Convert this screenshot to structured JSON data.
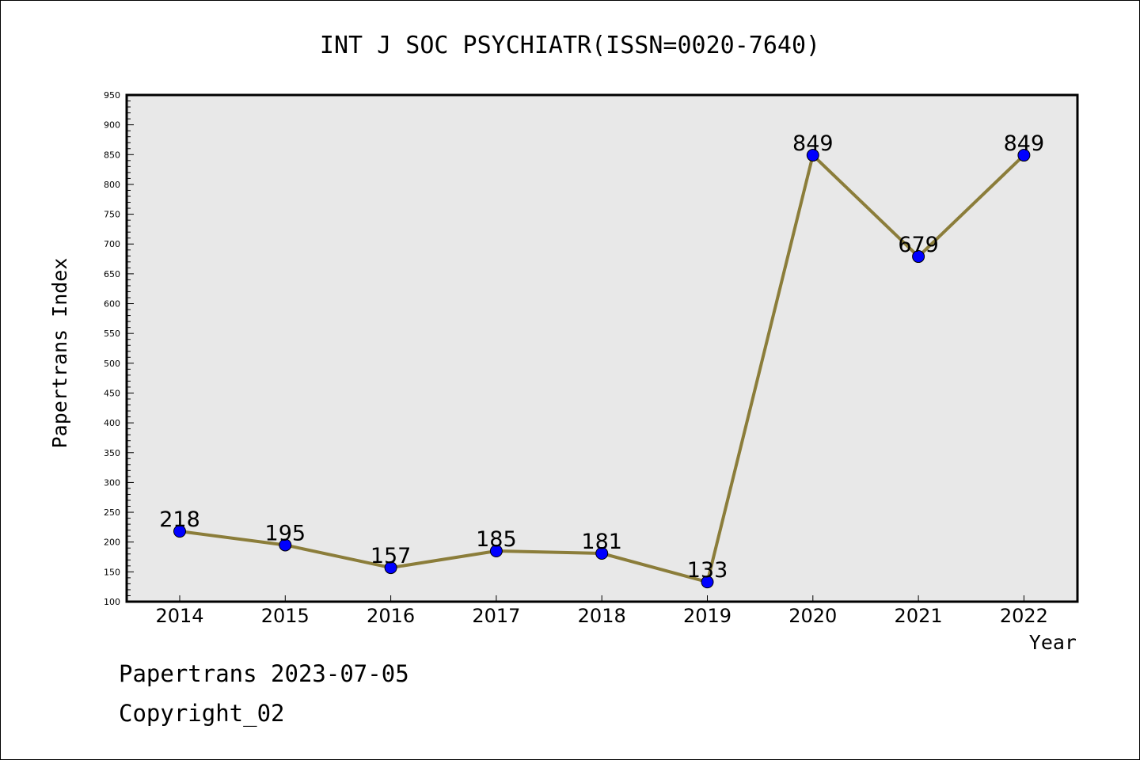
{
  "chart_data": {
    "type": "line",
    "title": "INT J SOC PSYCHIATR(ISSN=0020-7640)",
    "xlabel": "Year",
    "ylabel": "Papertrans Index",
    "categories": [
      "2014",
      "2015",
      "2016",
      "2017",
      "2018",
      "2019",
      "2020",
      "2021",
      "2022"
    ],
    "values": [
      218,
      195,
      157,
      185,
      181,
      133,
      849,
      679,
      849
    ],
    "data_labels": [
      "218",
      "195",
      "157",
      "185",
      "181",
      "133",
      "849",
      "679",
      "849"
    ],
    "ylim": [
      100,
      950
    ],
    "ytick_step": 50,
    "yticks": [
      "100",
      "150",
      "200",
      "250",
      "300",
      "350",
      "400",
      "450",
      "500",
      "550",
      "600",
      "650",
      "700",
      "750",
      "800",
      "850",
      "900",
      "950"
    ],
    "grid": false,
    "line_color": "#8B7D3A",
    "marker_color": "#0000FF",
    "plot_background": "#E8E8E8"
  },
  "footer": {
    "line1": "Papertrans 2023-07-05",
    "line2": "Copyright_02"
  }
}
